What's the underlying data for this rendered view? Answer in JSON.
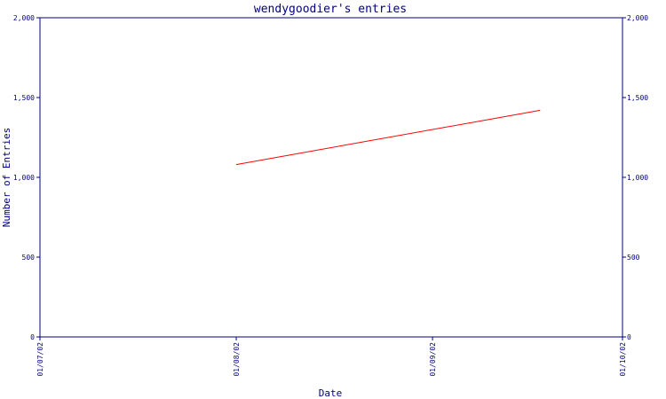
{
  "colors": {
    "frame": "#000080",
    "text": "#000080",
    "series": "#ff0000",
    "background": "#ffffff"
  },
  "chart_data": {
    "type": "line",
    "title": "wendygoodier's entries",
    "xlabel": "Date",
    "ylabel": "Number of Entries",
    "x_ticks": [
      "01/07/02",
      "01/08/02",
      "01/09/02",
      "01/10/02"
    ],
    "y_ticks": [
      "0",
      "500",
      "1,000",
      "1,500",
      "2,000"
    ],
    "ylim": [
      0,
      2000
    ],
    "xlim": [
      "2002-07-01",
      "2002-10-01"
    ],
    "grid": false,
    "series": [
      {
        "x": [
          "2002-08-01",
          "2002-09-18"
        ],
        "values": [
          1080,
          1420
        ]
      }
    ]
  }
}
